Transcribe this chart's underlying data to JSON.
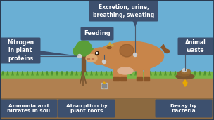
{
  "bg_sky": "#6aafd4",
  "bg_grass": "#7ab648",
  "bg_dirt": "#b08050",
  "bg_soil": "#8b6940",
  "label_box_color": "#3d506e",
  "label_text_color": "#ffffff",
  "arrow_color": "#e8a800",
  "connector_color": "#4a5a6e",
  "cow_body": "#c8854a",
  "cow_light": "#dba870",
  "cow_dark": "#8a5528",
  "dung_color": "#7a5530",
  "fig_width": 3.04,
  "fig_height": 1.71,
  "dpi": 100,
  "labels": {
    "excretion": "Excretion, urine,\nbreathing, sweating",
    "feeding": "Feeding",
    "nitrogen": "Nitrogen\nin plant\nproteins",
    "animal_waste": "Animal\nwaste",
    "ammonia": "Ammonia and\nnitrates in soil",
    "absorption": "Absorption by\nplant roots",
    "decay": "Decay by\nbacteria"
  }
}
